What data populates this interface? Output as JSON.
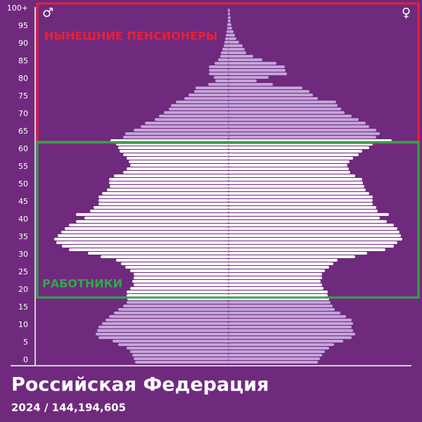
{
  "chart_data": {
    "type": "pyramid",
    "title": "Российская Федерация",
    "subtitle": "2024  /  144,194,605",
    "categories": [
      "0",
      null,
      null,
      null,
      null,
      "5",
      null,
      null,
      null,
      null,
      "10",
      null,
      null,
      null,
      null,
      "15",
      null,
      null,
      null,
      null,
      "20",
      null,
      null,
      null,
      null,
      "25",
      null,
      null,
      null,
      null,
      "30",
      null,
      null,
      null,
      null,
      "35",
      null,
      null,
      null,
      null,
      "40",
      null,
      null,
      null,
      null,
      "45",
      null,
      null,
      null,
      null,
      "50",
      null,
      null,
      null,
      null,
      "55",
      null,
      null,
      null,
      null,
      "60",
      null,
      null,
      null,
      null,
      "65",
      null,
      null,
      null,
      null,
      "70",
      null,
      null,
      null,
      null,
      "75",
      null,
      null,
      null,
      null,
      "80",
      null,
      null,
      null,
      null,
      "85",
      null,
      null,
      null,
      null,
      "90",
      null,
      null,
      null,
      null,
      "95",
      null,
      null,
      null,
      null,
      "100+"
    ],
    "xlim": [
      0,
      1375
    ],
    "highlight_range": [
      18,
      63
    ],
    "series": [
      {
        "symbol": "♂",
        "color": "#c4a3d9",
        "highlight_color": "#ffffff",
        "values": [
          665,
          675,
          685,
          700,
          725,
          785,
          825,
          925,
          945,
          935,
          925,
          900,
          875,
          850,
          815,
          785,
          750,
          725,
          720,
          725,
          725,
          700,
          675,
          685,
          675,
          675,
          700,
          735,
          765,
          800,
          910,
          1000,
          1135,
          1185,
          1225,
          1240,
          1215,
          1190,
          1165,
          1135,
          1085,
          1025,
          1085,
          985,
          960,
          925,
          925,
          925,
          900,
          865,
          845,
          850,
          850,
          815,
          750,
          725,
          700,
          710,
          725,
          750,
          775,
          785,
          800,
          840,
          750,
          735,
          675,
          625,
          595,
          525,
          495,
          460,
          425,
          410,
          375,
          315,
          285,
          245,
          235,
          145,
          95,
          105,
          140,
          140,
          140,
          100,
          75,
          60,
          55,
          45,
          35,
          30,
          25,
          20,
          15,
          10,
          10,
          5,
          5,
          5,
          5
        ]
      },
      {
        "symbol": "♀",
        "color": "#c4a3d9",
        "highlight_color": "#ffffff",
        "values": [
          635,
          650,
          665,
          685,
          715,
          750,
          815,
          875,
          900,
          885,
          875,
          885,
          875,
          835,
          795,
          755,
          740,
          725,
          715,
          705,
          705,
          675,
          665,
          655,
          665,
          665,
          685,
          715,
          745,
          775,
          900,
          985,
          1115,
          1175,
          1200,
          1235,
          1225,
          1215,
          1200,
          1175,
          1125,
          1075,
          1140,
          1060,
          1050,
          1025,
          1025,
          1025,
          1000,
          975,
          965,
          955,
          950,
          900,
          865,
          855,
          845,
          860,
          885,
          925,
          950,
          1000,
          1025,
          1160,
          1050,
          1075,
          1050,
          1000,
          975,
          925,
          875,
          825,
          800,
          775,
          765,
          635,
          600,
          575,
          525,
          315,
          200,
          285,
          415,
          405,
          400,
          340,
          240,
          175,
          125,
          115,
          100,
          75,
          55,
          45,
          35,
          25,
          20,
          15,
          15,
          10,
          10
        ]
      }
    ],
    "annotations": [
      {
        "text": "НЫНЕШНИЕ ПЕНСИОНЕРЫ",
        "color": "#e4213b",
        "from": 63,
        "to": 100
      },
      {
        "text": "РАБОТНИКИ",
        "color": "#2fa84a",
        "from": 19,
        "to": 62
      }
    ]
  }
}
